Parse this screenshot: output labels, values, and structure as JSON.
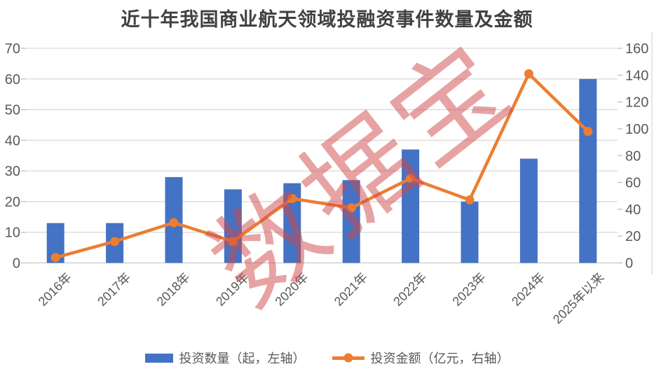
{
  "title": "近十年我国商业航天领域投融资事件数量及金额",
  "watermark": "数据宝",
  "colors": {
    "bar": "#4472C4",
    "line": "#ED7D31",
    "grid": "#D9D9D9",
    "axis_line": "#C9C9C9",
    "tick": "#BFBFBF",
    "axis_text": "#595959",
    "title_text": "#404040",
    "watermark": "#D04848",
    "background": "#FFFFFF"
  },
  "chart_data": {
    "type": "bar",
    "subtype": "combo-bar-line-dual-axis",
    "title": "近十年我国商业航天领域投融资事件数量及金额",
    "categories": [
      "2016年",
      "2017年",
      "2018年",
      "2019年",
      "2020年",
      "2021年",
      "2022年",
      "2023年",
      "2024年",
      "2025年以来"
    ],
    "series": [
      {
        "name": "投资数量（起，左轴）",
        "type": "bar",
        "axis": "left",
        "color": "#4472C4",
        "values": [
          13,
          13,
          28,
          24,
          26,
          27,
          37,
          20,
          34,
          60
        ]
      },
      {
        "name": "投资金额（亿元，右轴）",
        "type": "line",
        "axis": "right",
        "color": "#ED7D31",
        "values": [
          4,
          16,
          30,
          16,
          48,
          41,
          63,
          47,
          141,
          98
        ]
      }
    ],
    "left_axis": {
      "min": 0,
      "max": 70,
      "ticks": [
        0,
        10,
        20,
        30,
        40,
        50,
        60,
        70
      ]
    },
    "right_axis": {
      "min": 0,
      "max": 160,
      "ticks": [
        0,
        20,
        40,
        60,
        80,
        100,
        120,
        140,
        160
      ]
    },
    "grid": true,
    "x_label_rotation_deg": -45,
    "legend_position": "bottom"
  }
}
